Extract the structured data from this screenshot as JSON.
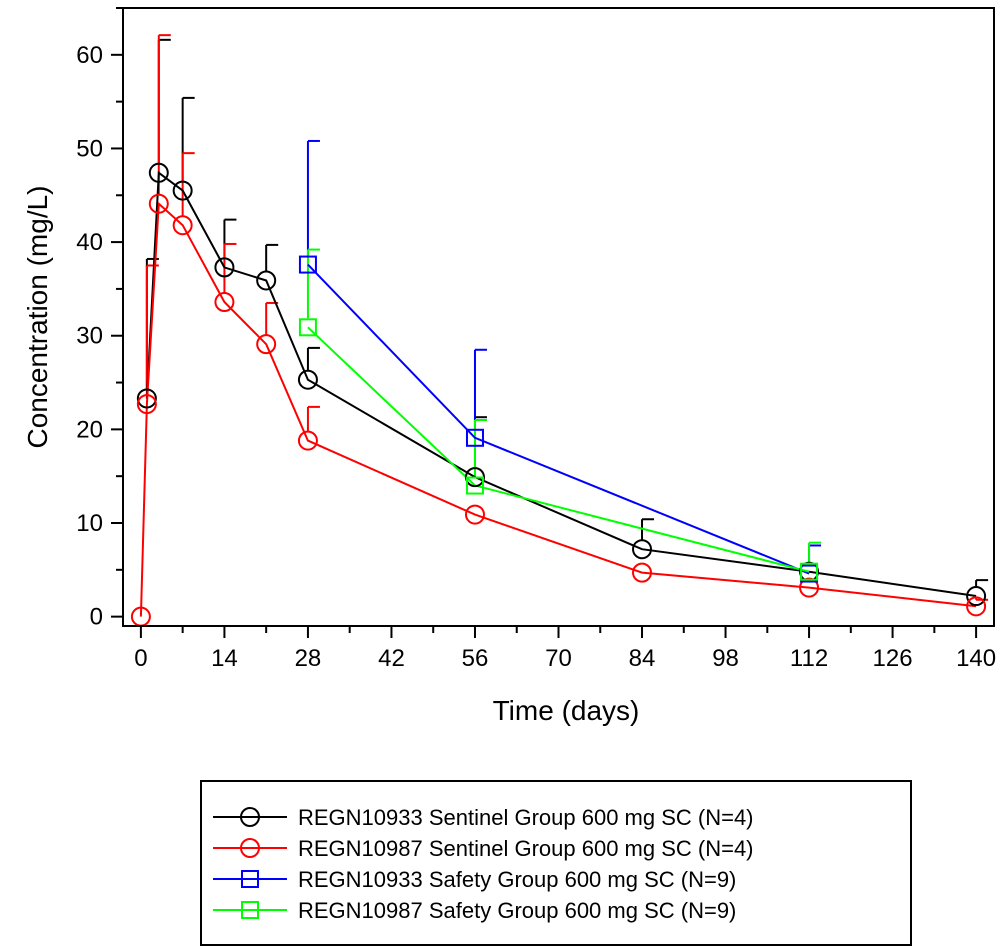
{
  "chart_data": {
    "type": "line",
    "xlabel": "Time (days)",
    "ylabel": "Concentration (mg/L)",
    "xlim": [
      -3,
      143
    ],
    "ylim": [
      -1,
      65
    ],
    "xticks": [
      0,
      14,
      28,
      42,
      56,
      70,
      84,
      98,
      112,
      126,
      140
    ],
    "yticks": [
      0,
      10,
      20,
      30,
      40,
      50,
      60
    ],
    "grid": false,
    "legend_position": "bottom",
    "series": [
      {
        "name": "REGN10933 Sentinel Group 600 mg SC (N=4)",
        "color": "#000000",
        "marker": "circle",
        "x": [
          1,
          3,
          7,
          14,
          21,
          28,
          56,
          84,
          112,
          140
        ],
        "y": [
          23.3,
          47.4,
          45.5,
          37.3,
          35.9,
          25.3,
          14.9,
          7.2,
          4.8,
          2.2
        ],
        "err_upper": [
          38.2,
          61.6,
          55.4,
          42.4,
          39.7,
          28.7,
          21.3,
          10.4,
          null,
          3.9
        ]
      },
      {
        "name": "REGN10987 Sentinel Group 600 mg SC (N=4)",
        "color": "#ff0000",
        "marker": "circle",
        "x": [
          0,
          1,
          3,
          7,
          14,
          21,
          28,
          56,
          84,
          112,
          140
        ],
        "y": [
          0,
          22.7,
          44.1,
          41.8,
          33.6,
          29.1,
          18.8,
          10.9,
          4.7,
          3.1,
          1.1
        ],
        "err_upper": [
          null,
          37.5,
          62.1,
          49.5,
          39.8,
          33.5,
          22.4,
          null,
          null,
          null,
          1.8
        ]
      },
      {
        "name": "REGN10933 Safety Group 600 mg SC (N=9)",
        "color": "#0000ff",
        "marker": "square",
        "x": [
          28,
          56,
          112
        ],
        "y": [
          37.6,
          19.1,
          4.6
        ],
        "err_upper": [
          50.8,
          28.5,
          7.6
        ]
      },
      {
        "name": "REGN10987 Safety Group 600 mg SC (N=9)",
        "color": "#00ff00",
        "marker": "square",
        "x": [
          28,
          56,
          112
        ],
        "y": [
          30.9,
          14.0,
          4.8
        ],
        "err_upper": [
          39.2,
          21.0,
          7.9
        ]
      }
    ]
  }
}
